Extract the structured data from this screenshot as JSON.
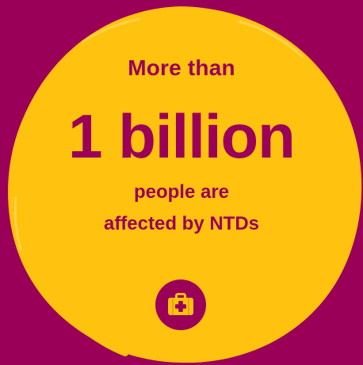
{
  "colors": {
    "background": "#9b0058",
    "accent": "#ffc20e",
    "text": "#9b0058"
  },
  "content": {
    "top_text": "More than",
    "highlight": "1 billion",
    "subtext_line1": "people are",
    "subtext_line2": "affected by NTDs"
  },
  "icon": {
    "name": "medical-kit-icon"
  }
}
